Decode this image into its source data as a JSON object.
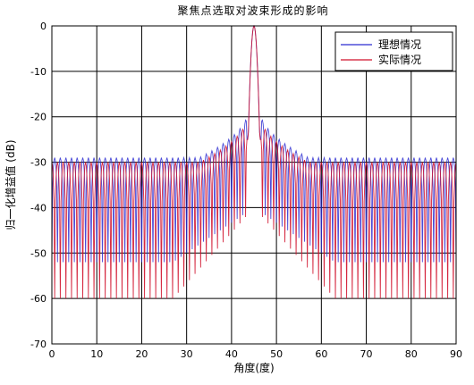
{
  "chart_data": {
    "type": "line",
    "title": "聚焦点选取对波束形成的影响",
    "xlabel": "角度(度)",
    "ylabel": "归一化增益值 (dB)",
    "xlim": [
      0,
      90
    ],
    "ylim": [
      -70,
      0
    ],
    "xticks": [
      0,
      10,
      20,
      30,
      40,
      50,
      60,
      70,
      80,
      90
    ],
    "yticks": [
      0,
      -10,
      -20,
      -30,
      -40,
      -50,
      -60,
      -70
    ],
    "grid": true,
    "legend_position": "top-right",
    "main_lobe_center": 45,
    "series": [
      {
        "name": "理想情况",
        "color": "#2a2ad0",
        "sidelobe_peak_near": -18,
        "sidelobe_peak_far": -29,
        "null_depth_min": -52
      },
      {
        "name": "实际情况",
        "color": "#d0102a",
        "sidelobe_peak_near": -19,
        "sidelobe_peak_far": -30,
        "null_depth_min": -60
      }
    ]
  }
}
